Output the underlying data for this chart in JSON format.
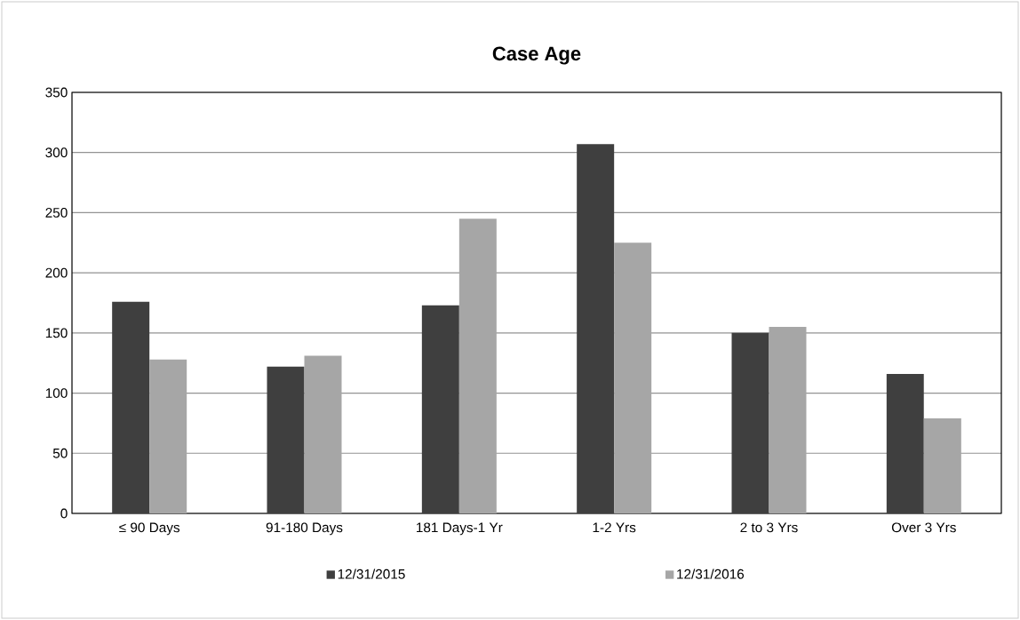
{
  "chart_data": {
    "type": "bar",
    "title": "Case Age",
    "categories": [
      "≤ 90 Days",
      "91-180 Days",
      "181 Days-1 Yr",
      "1-2 Yrs",
      "2 to 3 Yrs",
      "Over 3 Yrs"
    ],
    "series": [
      {
        "name": "12/31/2015",
        "color": "#3f3f3f",
        "values": [
          176,
          122,
          173,
          307,
          150,
          116
        ]
      },
      {
        "name": "12/31/2016",
        "color": "#a6a6a6",
        "values": [
          128,
          131,
          245,
          225,
          155,
          79
        ]
      }
    ],
    "ylim": [
      0,
      350
    ],
    "yticks": [
      0,
      50,
      100,
      150,
      200,
      250,
      300,
      350
    ],
    "grid": "y",
    "legend": "bottom"
  }
}
